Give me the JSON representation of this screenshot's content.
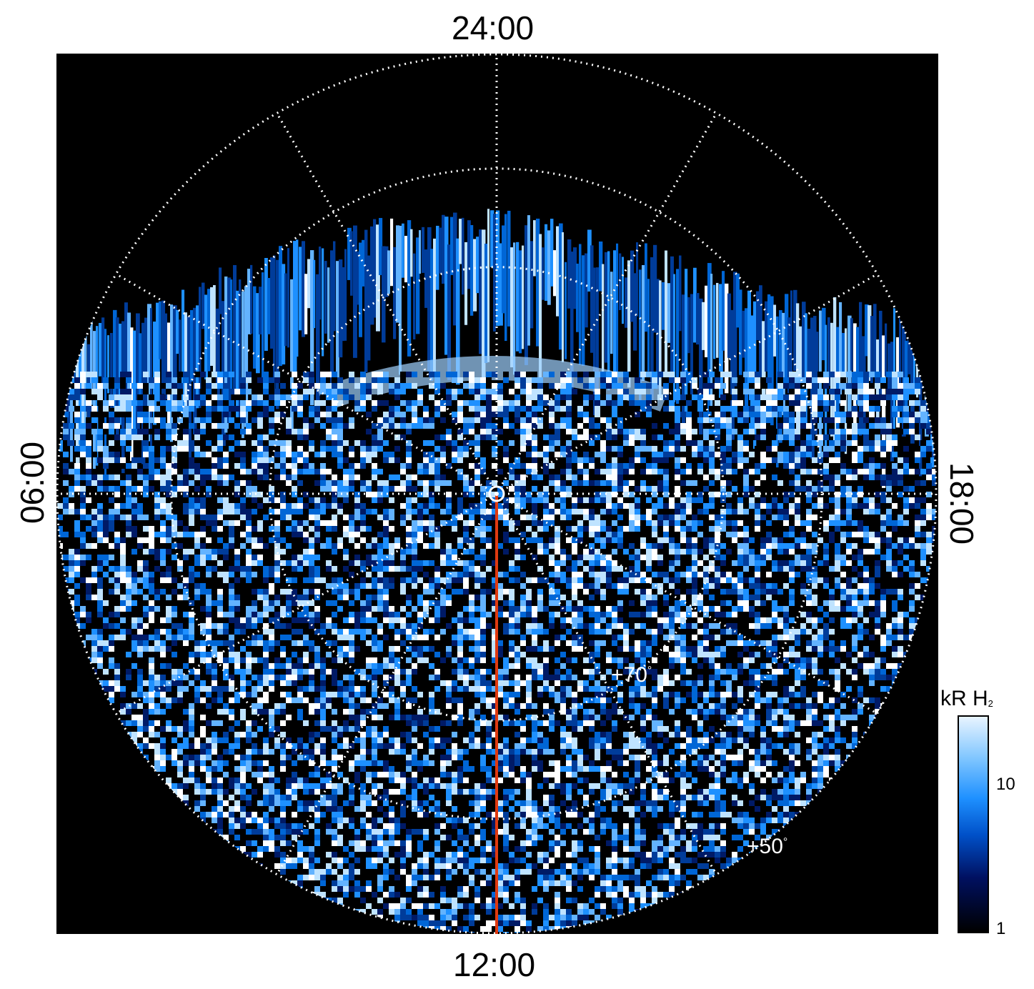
{
  "image": {
    "panel_color": "#000000",
    "grid_color": "#ffffff",
    "meridian_color": "#e03a10",
    "emission_colors": [
      "#000000",
      "#001a66",
      "#003c9a",
      "#0066d6",
      "#1e90ff",
      "#63b3ff",
      "#bfe3ff",
      "#ffffff"
    ]
  },
  "local_time_labels": {
    "top": "24:00",
    "bottom": "12:00",
    "left": "06:00",
    "right": "18:00"
  },
  "latitude_labels": {
    "lat_70": "+70",
    "lat_50": "+50",
    "degree_symbol": "°"
  },
  "colorbar": {
    "title_main": "kR H",
    "title_sub": "2",
    "scale": "log",
    "tick_10": "10",
    "tick_1": "1"
  }
}
